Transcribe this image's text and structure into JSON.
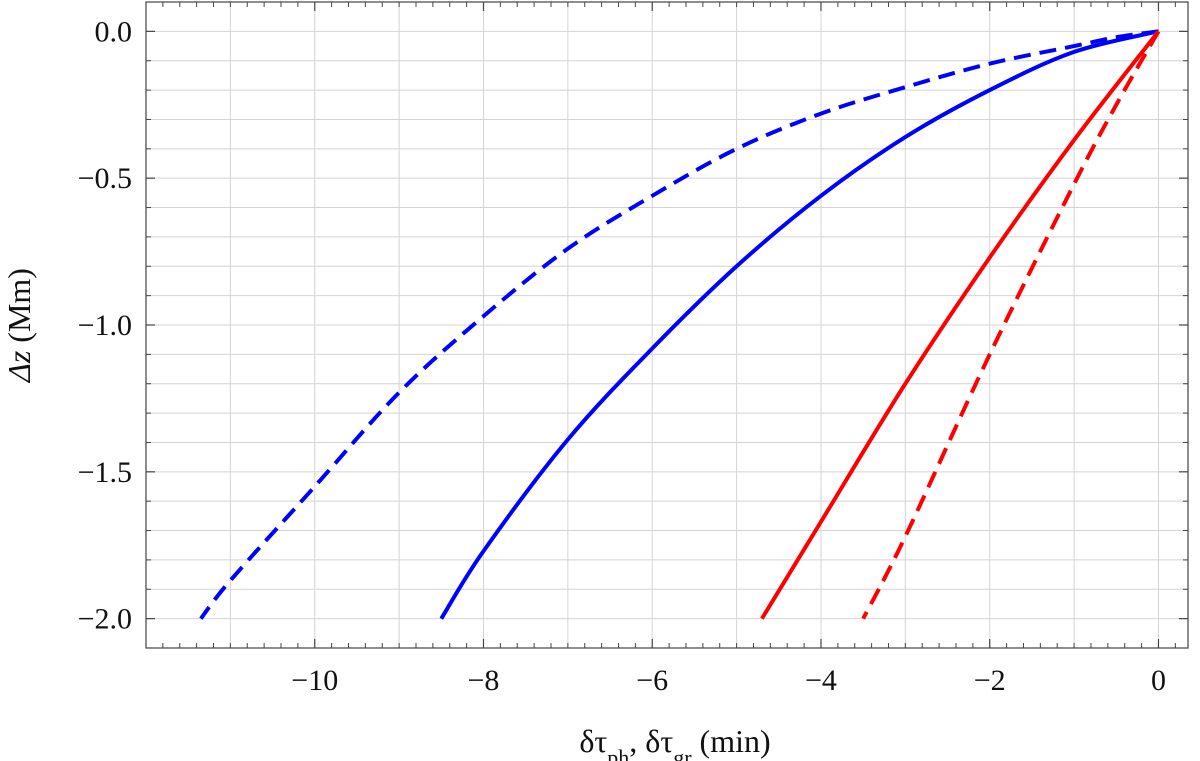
{
  "chart_data": {
    "type": "line",
    "xlabel": {
      "prefix": "δτ",
      "sub1": "ph",
      "sep": ",  δτ",
      "sub2": "gr",
      "unit": "  (min)"
    },
    "ylabel": {
      "symbol": "Δz",
      "unit": "  (Mm)"
    },
    "xlim": [
      -12.0,
      0.35
    ],
    "ylim": [
      -2.1,
      0.1
    ],
    "x_ticks": [
      -10,
      -8,
      -6,
      -4,
      -2,
      0
    ],
    "x_tick_labels": [
      "−10",
      "−8",
      "−6",
      "−4",
      "−2",
      "0"
    ],
    "y_ticks": [
      0.0,
      -0.5,
      -1.0,
      -1.5,
      -2.0
    ],
    "y_tick_labels": [
      "0.0",
      "−0.5",
      "−1.0",
      "−1.5",
      "−2.0"
    ],
    "grid": true,
    "series": [
      {
        "color": "#0000ff",
        "dash": "dashed",
        "points": [
          [
            0,
            0
          ],
          [
            -0.5,
            -0.02
          ],
          [
            -1,
            -0.05
          ],
          [
            -2,
            -0.11
          ],
          [
            -3,
            -0.19
          ],
          [
            -4,
            -0.28
          ],
          [
            -5,
            -0.4
          ],
          [
            -6,
            -0.56
          ],
          [
            -7,
            -0.74
          ],
          [
            -8,
            -0.97
          ],
          [
            -9,
            -1.23
          ],
          [
            -10,
            -1.55
          ],
          [
            -11,
            -1.87
          ],
          [
            -11.35,
            -2.0
          ]
        ]
      },
      {
        "color": "#0000ff",
        "dash": "solid",
        "points": [
          [
            0,
            0
          ],
          [
            -1,
            -0.07
          ],
          [
            -2,
            -0.2
          ],
          [
            -3,
            -0.36
          ],
          [
            -4,
            -0.56
          ],
          [
            -5,
            -0.8
          ],
          [
            -6,
            -1.08
          ],
          [
            -7,
            -1.39
          ],
          [
            -8,
            -1.77
          ],
          [
            -8.5,
            -2.0
          ]
        ]
      },
      {
        "color": "#ff0000",
        "dash": "solid",
        "points": [
          [
            0,
            0
          ],
          [
            -1,
            -0.37
          ],
          [
            -2,
            -0.77
          ],
          [
            -3,
            -1.2
          ],
          [
            -4,
            -1.67
          ],
          [
            -4.7,
            -2.0
          ]
        ]
      },
      {
        "color": "#ff0000",
        "dash": "dashed",
        "points": [
          [
            0,
            0
          ],
          [
            -0.5,
            -0.25
          ],
          [
            -1,
            -0.52
          ],
          [
            -2,
            -1.1
          ],
          [
            -3,
            -1.72
          ],
          [
            -3.5,
            -2.0
          ]
        ]
      }
    ]
  }
}
